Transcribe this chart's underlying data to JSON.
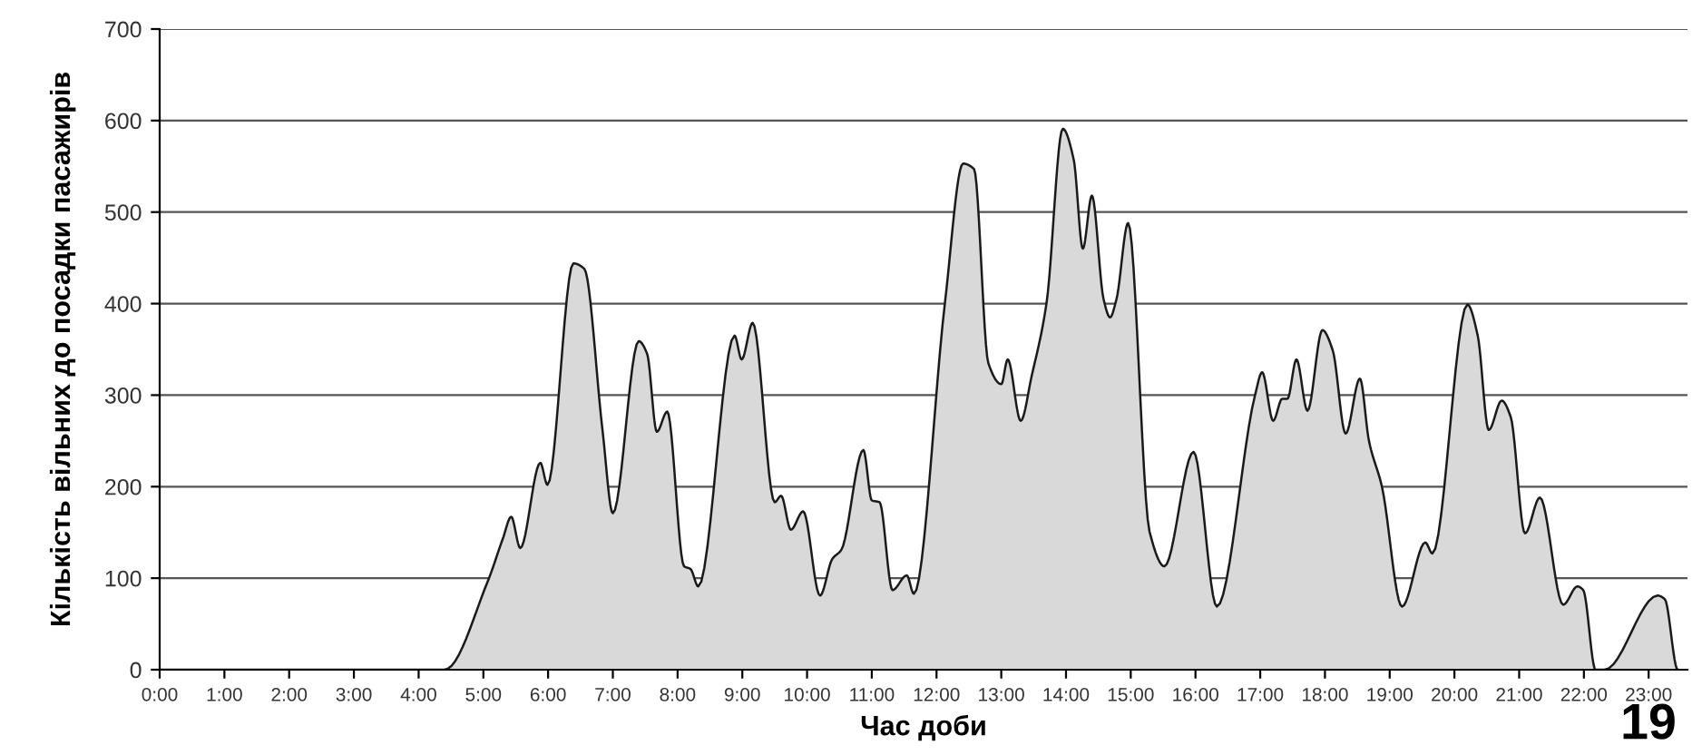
{
  "chart_data": {
    "type": "area",
    "xlabel": "Час доби",
    "ylabel": "Кількість вільних до посадки пасажирів",
    "x": [
      0,
      4.4,
      5.07,
      5.3,
      5.43,
      5.57,
      5.88,
      5.99,
      6.39,
      6.56,
      6.84,
      7.0,
      7.4,
      7.53,
      7.68,
      7.84,
      8.1,
      8.2,
      8.32,
      8.88,
      8.99,
      9.16,
      9.5,
      9.6,
      9.75,
      9.94,
      10.2,
      10.39,
      10.53,
      10.87,
      11.0,
      11.12,
      11.32,
      11.54,
      11.65,
      12.13,
      12.41,
      12.58,
      12.8,
      13.0,
      13.1,
      13.3,
      13.47,
      13.7,
      13.95,
      14.12,
      14.26,
      14.4,
      14.58,
      14.68,
      14.78,
      14.96,
      15.29,
      15.52,
      15.97,
      16.33,
      16.92,
      17.03,
      17.2,
      17.34,
      17.42,
      17.56,
      17.73,
      17.96,
      18.12,
      18.32,
      18.54,
      18.68,
      18.88,
      19.19,
      19.55,
      19.66,
      20.2,
      20.36,
      20.53,
      20.73,
      20.87,
      21.09,
      21.32,
      21.68,
      21.9,
      21.99,
      22.18,
      22.32,
      23.14,
      23.25,
      23.45
    ],
    "series": [
      {
        "color": "#d9d9d9",
        "values": [
          0,
          0,
          97,
          143,
          167,
          133,
          226,
          202,
          444,
          438,
          262,
          171,
          359,
          345,
          260,
          282,
          113,
          110,
          91,
          365,
          339,
          379,
          183,
          190,
          153,
          173,
          81,
          121,
          131,
          240,
          185,
          183,
          87,
          103,
          83,
          401,
          553,
          547,
          335,
          312,
          339,
          272,
          321,
          401,
          591,
          557,
          460,
          518,
          405,
          385,
          405,
          488,
          151,
          113,
          238,
          69,
          300,
          325,
          272,
          296,
          296,
          339,
          283,
          371,
          349,
          258,
          318,
          250,
          200,
          69,
          139,
          127,
          399,
          365,
          262,
          294,
          276,
          149,
          188,
          71,
          91,
          87,
          0,
          0,
          81,
          77,
          0
        ]
      }
    ],
    "xlim": [
      0,
      23.6
    ],
    "xticks": [
      {
        "value": 0,
        "label": "0:00"
      },
      {
        "value": 1,
        "label": "1:00"
      },
      {
        "value": 2,
        "label": "2:00"
      },
      {
        "value": 3,
        "label": "3:00"
      },
      {
        "value": 4,
        "label": "4:00"
      },
      {
        "value": 5,
        "label": "5:00"
      },
      {
        "value": 6,
        "label": "6:00"
      },
      {
        "value": 7,
        "label": "7:00"
      },
      {
        "value": 8,
        "label": "8:00"
      },
      {
        "value": 9,
        "label": "9:00"
      },
      {
        "value": 10,
        "label": "10:00"
      },
      {
        "value": 11,
        "label": "11:00"
      },
      {
        "value": 12,
        "label": "12:00"
      },
      {
        "value": 13,
        "label": "13:00"
      },
      {
        "value": 14,
        "label": "14:00"
      },
      {
        "value": 15,
        "label": "15:00"
      },
      {
        "value": 16,
        "label": "16:00"
      },
      {
        "value": 17,
        "label": "17:00"
      },
      {
        "value": 18,
        "label": "18:00"
      },
      {
        "value": 19,
        "label": "19:00"
      },
      {
        "value": 20,
        "label": "20:00"
      },
      {
        "value": 21,
        "label": "21:00"
      },
      {
        "value": 22,
        "label": "22:00"
      },
      {
        "value": 23,
        "label": "23:00"
      }
    ],
    "ylim": [
      0,
      700
    ],
    "yticks": [
      0,
      100,
      200,
      300,
      400,
      500,
      600,
      700
    ],
    "grid": "y",
    "line_style": "solid",
    "annotations": [
      "19"
    ]
  }
}
